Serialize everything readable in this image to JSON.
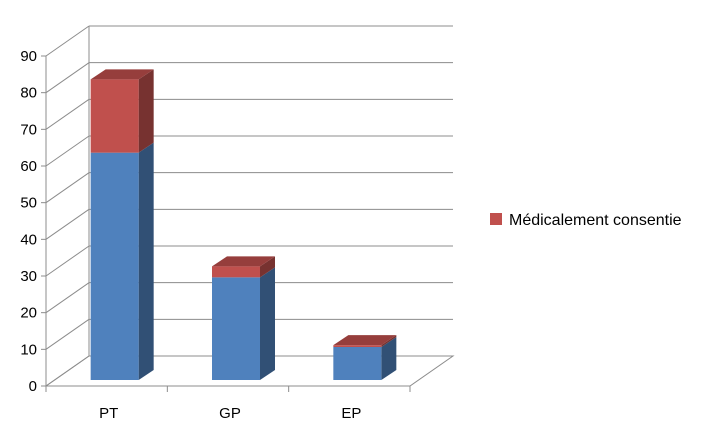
{
  "chart_data": {
    "type": "bar",
    "stacked": true,
    "three_d": true,
    "categories": [
      "PT",
      "GP",
      "EP"
    ],
    "series": [
      {
        "values": [
          62,
          28,
          9
        ],
        "color": "#4f81bd"
      },
      {
        "name": "Médicalement consentie",
        "values": [
          20,
          3,
          0.5
        ],
        "color": "#c0504d"
      }
    ],
    "ylim": [
      0,
      90
    ],
    "yticks": [
      0,
      10,
      20,
      30,
      40,
      50,
      60,
      70,
      80,
      90
    ],
    "grid": true,
    "legend": {
      "position": "right",
      "entries": [
        "Médicalement consentie"
      ]
    }
  }
}
